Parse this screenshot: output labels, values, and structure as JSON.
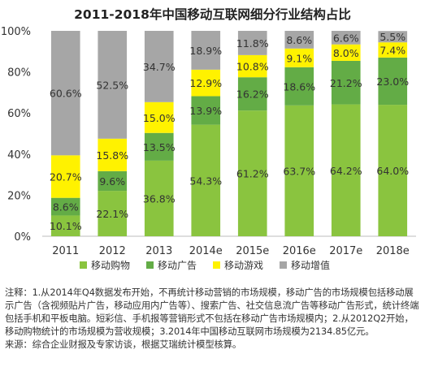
{
  "chart_data": {
    "type": "bar",
    "stacked": true,
    "title": "2011-2018年中国移动互联网细分行业结构占比",
    "categories": [
      "2011",
      "2012",
      "2013",
      "2014e",
      "2015e",
      "2016e",
      "2017e",
      "2018e"
    ],
    "series": [
      {
        "name": "移动购物",
        "color": "#8ac43f",
        "values": [
          10.1,
          22.1,
          36.8,
          54.3,
          61.2,
          63.7,
          64.2,
          64.0
        ]
      },
      {
        "name": "移动广告",
        "color": "#63ac46",
        "values": [
          8.6,
          9.6,
          13.5,
          13.9,
          16.2,
          18.6,
          21.2,
          23.0
        ]
      },
      {
        "name": "移动游戏",
        "color": "#fff200",
        "values": [
          20.7,
          15.8,
          15.0,
          12.9,
          10.8,
          9.1,
          8.0,
          7.4
        ]
      },
      {
        "name": "移动增值",
        "color": "#a6a6a6",
        "values": [
          60.6,
          52.5,
          34.7,
          18.9,
          11.8,
          8.6,
          6.6,
          5.5
        ]
      }
    ],
    "yticks": [
      "0%",
      "20%",
      "40%",
      "60%",
      "80%",
      "100%"
    ],
    "ylim": [
      0,
      100
    ],
    "legend_position": "bottom",
    "grid": false
  },
  "notes": {
    "line1": "注释：1.从2014年Q4数据发布开始，不再统计移动营销的市场规模，移动广告的市场规模包括移动展示广告（含视频贴片广告，移动应用内广告等）、搜索广告、社交信息流广告等移动广告形式，统计终端包括手机和平板电脑。短彩信、手机报等营销形式不包括在移动广告市场规模内；2.从2012Q2开始，移动购物统计的市场规模为营收规模；3.2014年中国移动互联网市场规模为2134.85亿元。",
    "line2": "来源：综合企业财报及专家访谈，根据艾瑞统计模型核算。"
  }
}
